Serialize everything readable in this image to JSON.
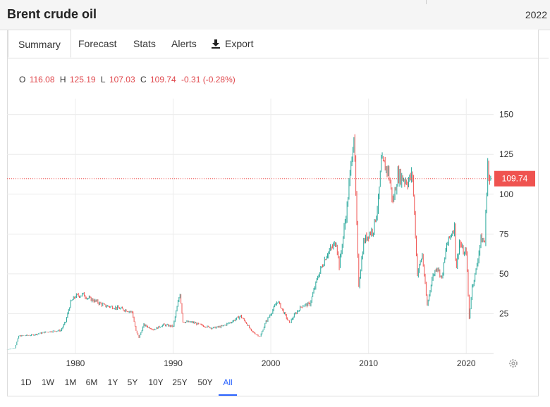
{
  "header": {
    "title": "Brent crude oil",
    "date": "2022"
  },
  "tabs": [
    {
      "label": "Summary",
      "active": true
    },
    {
      "label": "Forecast",
      "active": false
    },
    {
      "label": "Stats",
      "active": false
    },
    {
      "label": "Alerts",
      "active": false
    },
    {
      "label": "Export",
      "active": false,
      "icon": "download-icon"
    }
  ],
  "ohlc": {
    "o_label": "O",
    "o": "116.08",
    "h_label": "H",
    "h": "125.19",
    "l_label": "L",
    "l": "107.03",
    "c_label": "C",
    "c": "109.74",
    "change": "-0.31 (-0.28%)"
  },
  "price_label": "109.74",
  "ranges": [
    {
      "label": "1D",
      "active": false
    },
    {
      "label": "1W",
      "active": false
    },
    {
      "label": "1M",
      "active": false
    },
    {
      "label": "6M",
      "active": false
    },
    {
      "label": "1Y",
      "active": false
    },
    {
      "label": "5Y",
      "active": false
    },
    {
      "label": "10Y",
      "active": false
    },
    {
      "label": "25Y",
      "active": false
    },
    {
      "label": "50Y",
      "active": false
    },
    {
      "label": "All",
      "active": true
    }
  ],
  "colors": {
    "up": "#26a69a",
    "down": "#ef5350",
    "accent": "#2962ff",
    "price_label_bg": "#ef5350"
  },
  "chart_data": {
    "type": "line",
    "title": "",
    "xlabel": "",
    "ylabel": "",
    "x_ticks": [
      1980,
      1990,
      2000,
      2010,
      2020
    ],
    "y_ticks": [
      25,
      50,
      75,
      100,
      125,
      150
    ],
    "xlim": [
      1973,
      2022.8
    ],
    "ylim": [
      0,
      160
    ],
    "grid": true,
    "current_price": 109.74,
    "series": [
      {
        "name": "",
        "points": [
          [
            1973.0,
            2.5
          ],
          [
            1973.8,
            3.5
          ],
          [
            1974.2,
            11.0
          ],
          [
            1975.5,
            11.5
          ],
          [
            1977.0,
            13.5
          ],
          [
            1978.5,
            14.5
          ],
          [
            1979.0,
            20.0
          ],
          [
            1979.5,
            32.0
          ],
          [
            1980.0,
            36.0
          ],
          [
            1980.8,
            37.0
          ],
          [
            1981.2,
            35.0
          ],
          [
            1982.0,
            33.0
          ],
          [
            1983.0,
            30.0
          ],
          [
            1984.0,
            29.0
          ],
          [
            1985.0,
            27.5
          ],
          [
            1985.8,
            26.0
          ],
          [
            1986.2,
            14.0
          ],
          [
            1986.5,
            10.0
          ],
          [
            1987.0,
            18.0
          ],
          [
            1988.0,
            15.0
          ],
          [
            1989.0,
            18.0
          ],
          [
            1990.0,
            17.0
          ],
          [
            1990.7,
            38.0
          ],
          [
            1991.0,
            20.0
          ],
          [
            1992.0,
            19.5
          ],
          [
            1993.0,
            17.5
          ],
          [
            1994.0,
            16.0
          ],
          [
            1995.0,
            17.0
          ],
          [
            1996.0,
            20.0
          ],
          [
            1996.9,
            23.5
          ],
          [
            1997.5,
            19.0
          ],
          [
            1998.0,
            14.0
          ],
          [
            1998.9,
            10.5
          ],
          [
            1999.5,
            20.0
          ],
          [
            2000.0,
            25.0
          ],
          [
            2000.7,
            33.0
          ],
          [
            2001.9,
            19.0
          ],
          [
            2002.5,
            25.0
          ],
          [
            2003.2,
            30.0
          ],
          [
            2004.0,
            31.0
          ],
          [
            2004.8,
            48.0
          ],
          [
            2005.7,
            62.0
          ],
          [
            2006.7,
            70.0
          ],
          [
            2007.0,
            55.0
          ],
          [
            2007.8,
            92.0
          ],
          [
            2008.5,
            138.0
          ],
          [
            2008.9,
            60.0
          ],
          [
            2009.0,
            43.0
          ],
          [
            2009.5,
            70.0
          ],
          [
            2010.0,
            75.0
          ],
          [
            2010.5,
            78.0
          ],
          [
            2011.0,
            95.0
          ],
          [
            2011.3,
            120.0
          ],
          [
            2012.0,
            115.0
          ],
          [
            2012.5,
            95.0
          ],
          [
            2013.0,
            112.0
          ],
          [
            2014.0,
            108.0
          ],
          [
            2014.5,
            112.0
          ],
          [
            2015.0,
            50.0
          ],
          [
            2015.5,
            62.0
          ],
          [
            2016.0,
            30.0
          ],
          [
            2016.5,
            47.0
          ],
          [
            2017.0,
            55.0
          ],
          [
            2017.5,
            47.0
          ],
          [
            2018.0,
            68.0
          ],
          [
            2018.8,
            80.0
          ],
          [
            2018.95,
            52.0
          ],
          [
            2019.3,
            70.0
          ],
          [
            2019.8,
            62.0
          ],
          [
            2020.0,
            65.0
          ],
          [
            2020.3,
            22.0
          ],
          [
            2020.6,
            42.0
          ],
          [
            2021.0,
            52.0
          ],
          [
            2021.5,
            72.0
          ],
          [
            2021.9,
            70.0
          ],
          [
            2022.2,
            120.0
          ],
          [
            2022.35,
            105.0
          ],
          [
            2022.5,
            109.74
          ]
        ]
      }
    ]
  }
}
